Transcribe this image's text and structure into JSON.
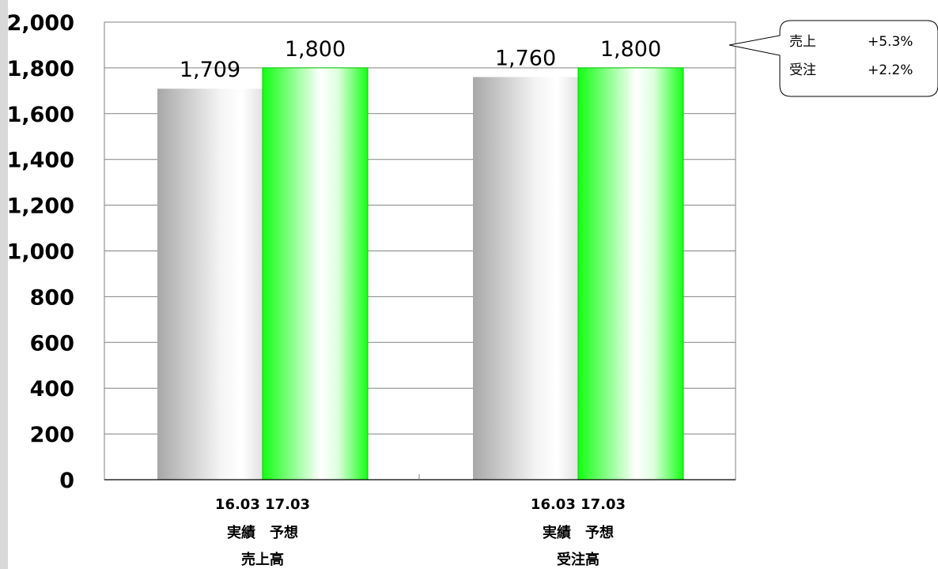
{
  "chart_data": {
    "type": "bar",
    "categories": [
      "売上高",
      "受注高"
    ],
    "category_lines": [
      [
        "16.03 17.03",
        "実績　予想",
        "売上高"
      ],
      [
        "16.03 17.03",
        "実績　予想",
        "受注高"
      ]
    ],
    "series": [
      {
        "values": [
          1709,
          1760
        ],
        "color": "#b3b3b3"
      },
      {
        "values": [
          1800,
          1800
        ],
        "color": "#00ff00"
      }
    ],
    "ylim": [
      0,
      2000
    ],
    "yticks": [
      0,
      200,
      400,
      600,
      800,
      1000,
      1200,
      1400,
      1600,
      1800,
      2000
    ],
    "grid": true,
    "callout": {
      "lines": [
        {
          "label": "売上",
          "value": "+5.3%"
        },
        {
          "label": "受注",
          "value": "+2.2%"
        }
      ]
    }
  }
}
